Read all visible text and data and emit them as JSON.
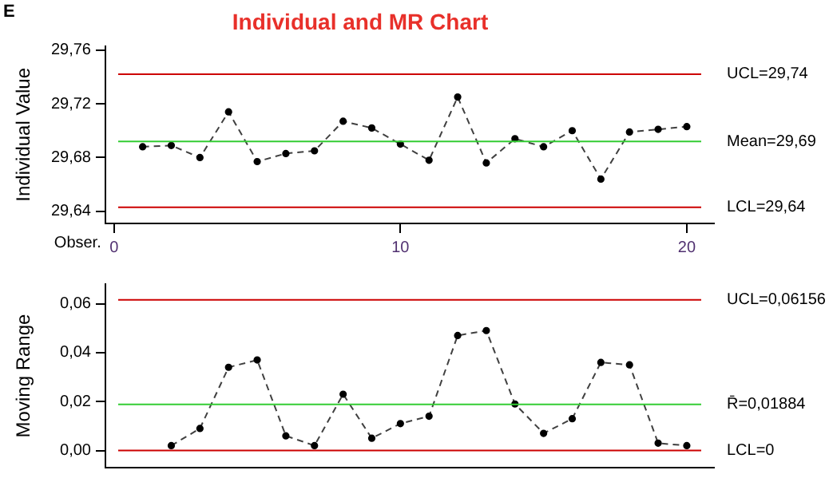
{
  "chart_data": [
    {
      "type": "line",
      "title": "Individual and MR Chart",
      "ylabel": "Individual Value",
      "xlabel": "Obser.",
      "annotations": [
        "E"
      ],
      "x": [
        1,
        2,
        3,
        4,
        5,
        6,
        7,
        8,
        9,
        10,
        11,
        12,
        13,
        14,
        15,
        16,
        17,
        18,
        19,
        20
      ],
      "series": [
        {
          "color": "#404040",
          "values": [
            29.688,
            29.689,
            29.68,
            29.714,
            29.677,
            29.683,
            29.685,
            29.707,
            29.702,
            29.69,
            29.678,
            29.725,
            29.676,
            29.694,
            29.688,
            29.7,
            29.664,
            29.699,
            29.701,
            29.703
          ]
        }
      ],
      "xlim": [
        -0.3,
        20.95
      ],
      "xticks": [
        0,
        10,
        20
      ],
      "ylim": [
        29.631,
        29.763
      ],
      "yticks": [
        {
          "value": 29.64,
          "label": "29,64"
        },
        {
          "value": 29.68,
          "label": "29,68"
        },
        {
          "value": 29.72,
          "label": "29,72"
        },
        {
          "value": 29.76,
          "label": "29,76"
        }
      ],
      "ref_lines": [
        {
          "axis": "y",
          "value": 29.742,
          "label": "UCL=29,74",
          "color": "#cc0000"
        },
        {
          "axis": "y",
          "value": 29.692,
          "label": "Mean=29,69",
          "color": "#33cc33"
        },
        {
          "axis": "y",
          "value": 29.643,
          "label": "LCL=29,64",
          "color": "#cc0000"
        }
      ],
      "marker": "circle",
      "line_style": "dashed",
      "grid": false,
      "legend": false
    },
    {
      "type": "line",
      "ylabel": "Moving Range",
      "x": [
        2,
        3,
        4,
        5,
        6,
        7,
        8,
        9,
        10,
        11,
        12,
        13,
        14,
        15,
        16,
        17,
        18,
        19,
        20
      ],
      "series": [
        {
          "color": "#404040",
          "values": [
            0.002,
            0.009,
            0.034,
            0.037,
            0.006,
            0.002,
            0.023,
            0.005,
            0.011,
            0.014,
            0.047,
            0.049,
            0.019,
            0.007,
            0.013,
            0.036,
            0.035,
            0.003,
            0.002
          ]
        }
      ],
      "xlim": [
        -0.3,
        20.95
      ],
      "ylim": [
        -0.007,
        0.068
      ],
      "yticks": [
        {
          "value": 0,
          "label": "0,00"
        },
        {
          "value": 0.02,
          "label": "0,02"
        },
        {
          "value": 0.04,
          "label": "0,04"
        },
        {
          "value": 0.06,
          "label": "0,06"
        }
      ],
      "ref_lines": [
        {
          "axis": "y",
          "value": 0.06156,
          "label": "UCL=0,06156",
          "color": "#cc0000"
        },
        {
          "axis": "y",
          "value": 0.01884,
          "label": "R̄=0,01884",
          "color": "#33cc33"
        },
        {
          "axis": "y",
          "value": 0,
          "label": "LCL=0",
          "color": "#cc0000"
        }
      ],
      "tick_labels": "y",
      "marker": "circle",
      "line_style": "dashed",
      "grid": false,
      "legend": false
    }
  ]
}
